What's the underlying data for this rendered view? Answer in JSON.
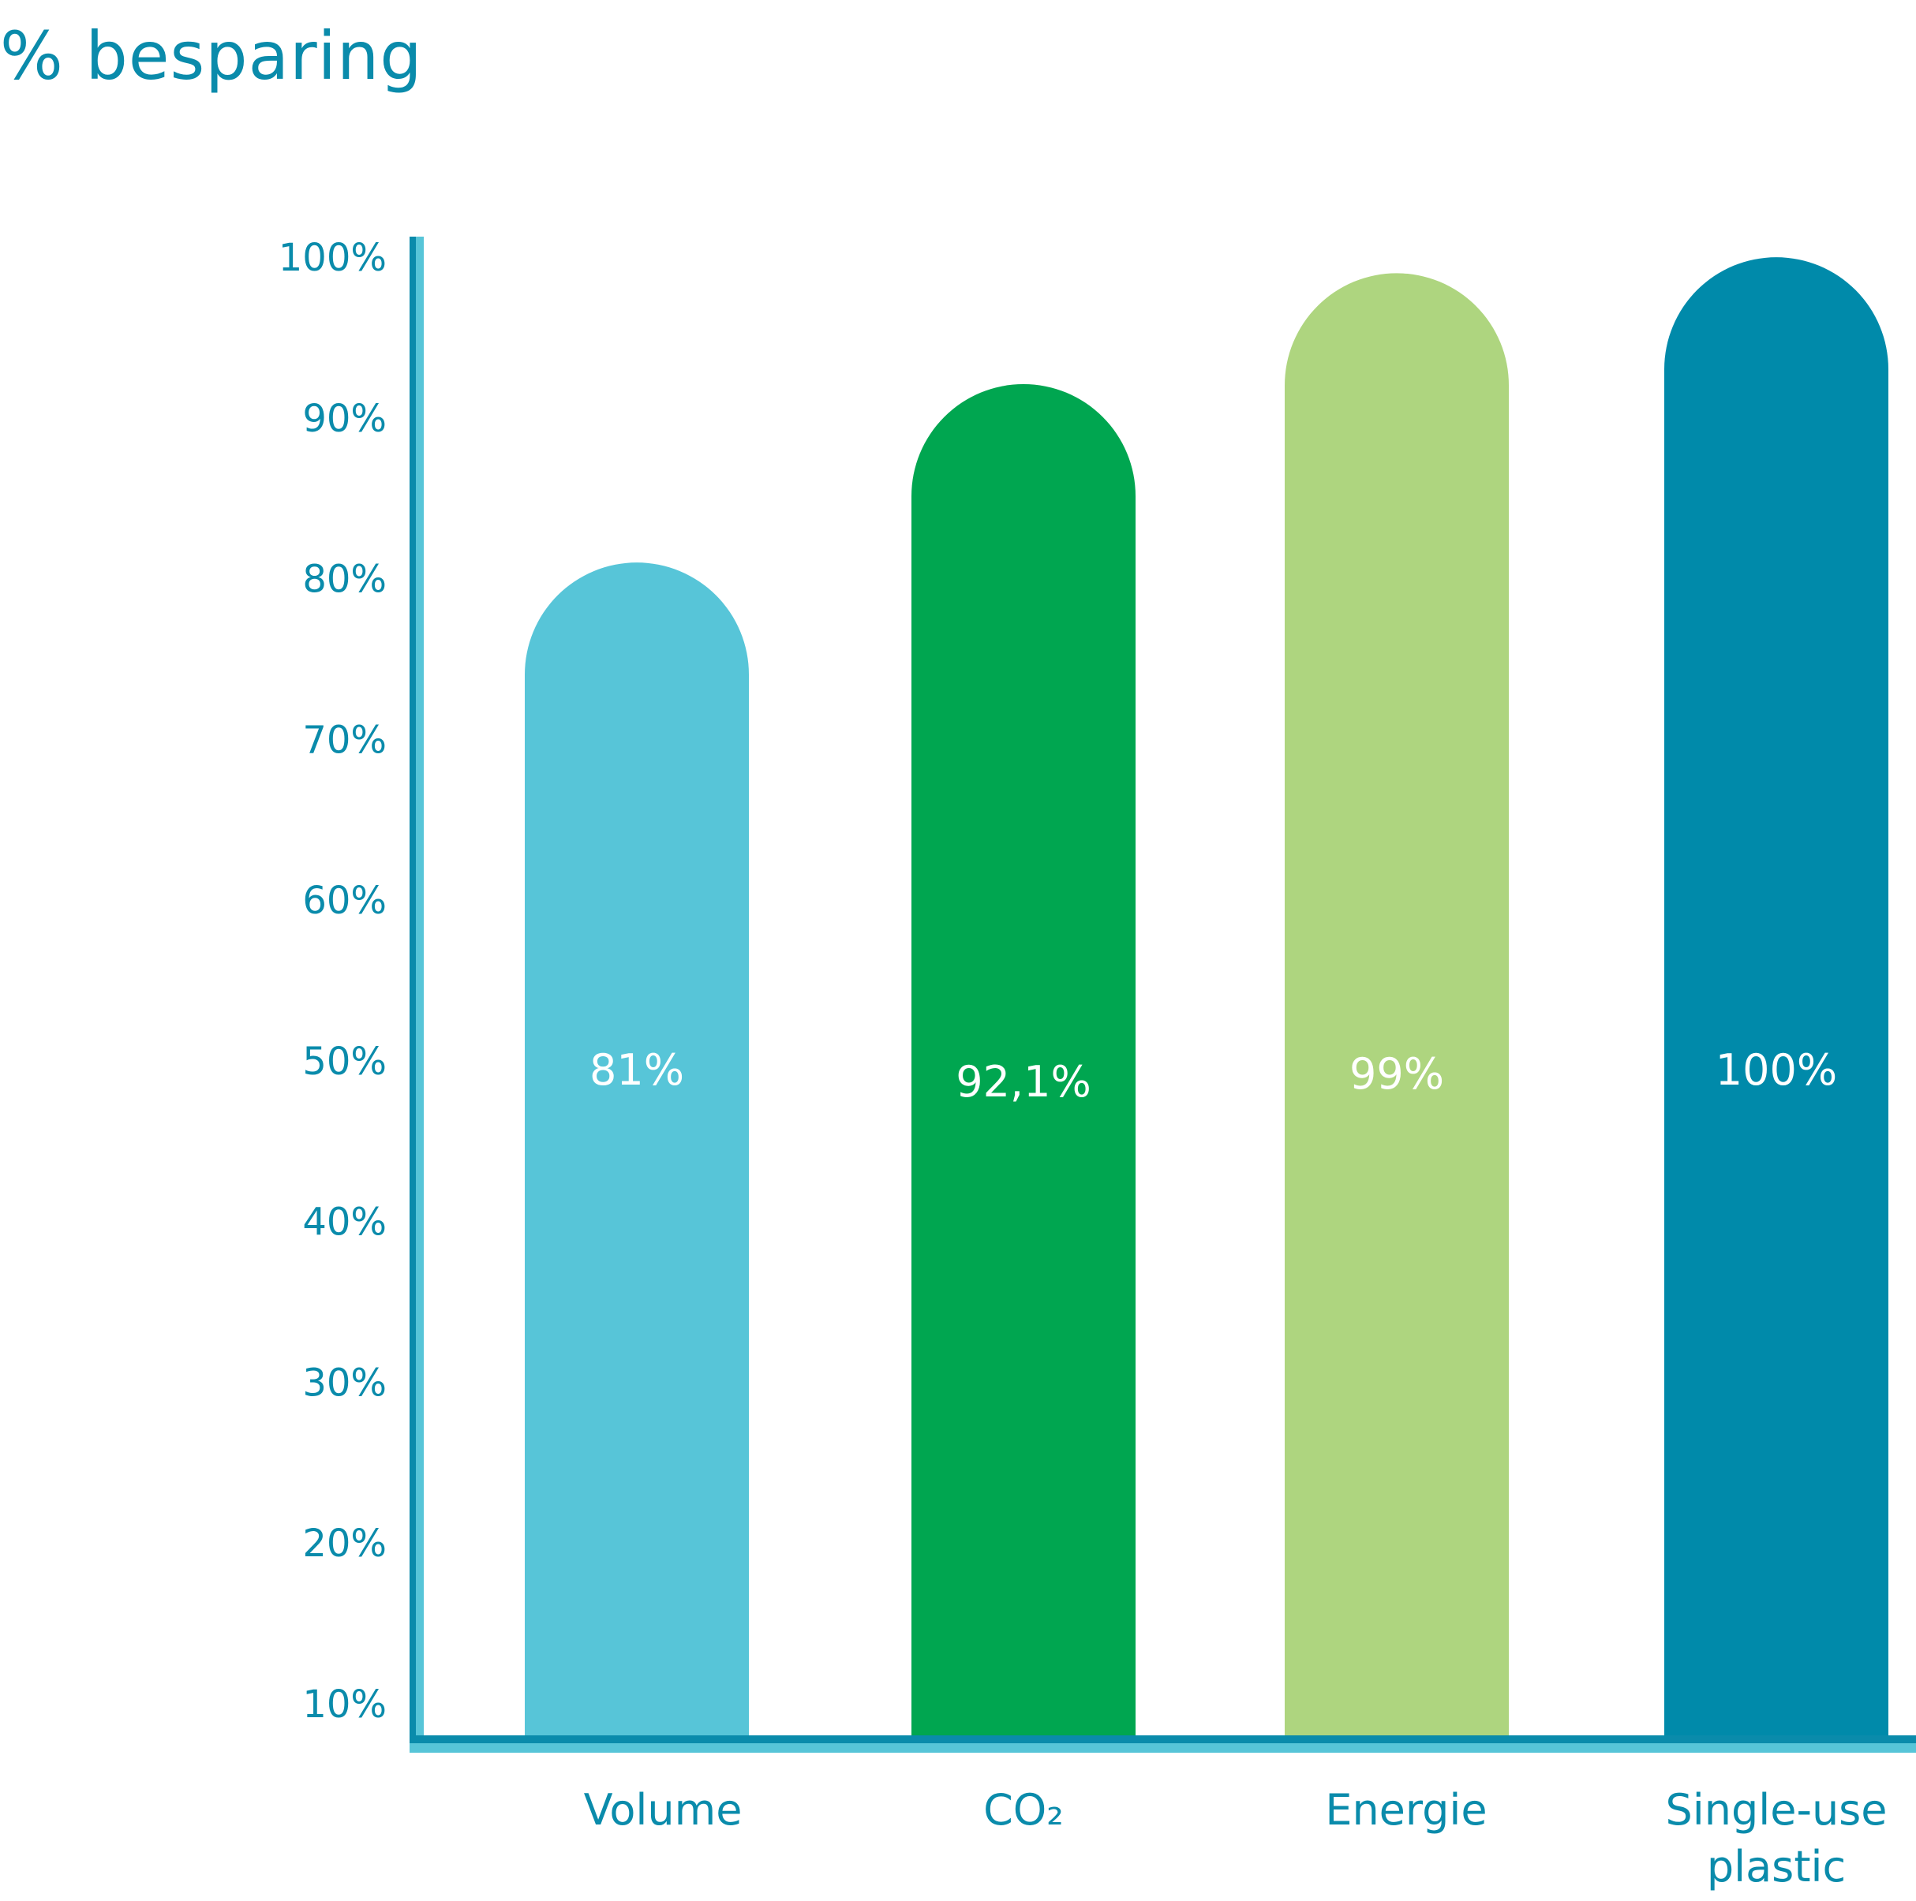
{
  "chart_data": {
    "type": "bar",
    "title": "% besparing",
    "categories": [
      "Volume",
      "CO2",
      "Energie",
      "Single-use plastic"
    ],
    "category_display": [
      [
        "Volume"
      ],
      [
        "CO₂"
      ],
      [
        "Energie"
      ],
      [
        "Single-use",
        "plastic"
      ]
    ],
    "values": [
      81,
      92.1,
      99,
      100
    ],
    "value_labels": [
      "81%",
      "92,1%",
      "99%",
      "100%"
    ],
    "yticks": [
      "10%",
      "20%",
      "30%",
      "40%",
      "50%",
      "60%",
      "70%",
      "80%",
      "90%",
      "100%"
    ],
    "ylim": [
      10,
      100
    ],
    "grid": false,
    "bar_colors": [
      "#57c5d8",
      "#00a650",
      "#aed57f",
      "#008aaa"
    ],
    "axis_color": "#0a8bab",
    "axis_highlight_color": "#57c5d8",
    "text_color": "#0a8bab"
  }
}
